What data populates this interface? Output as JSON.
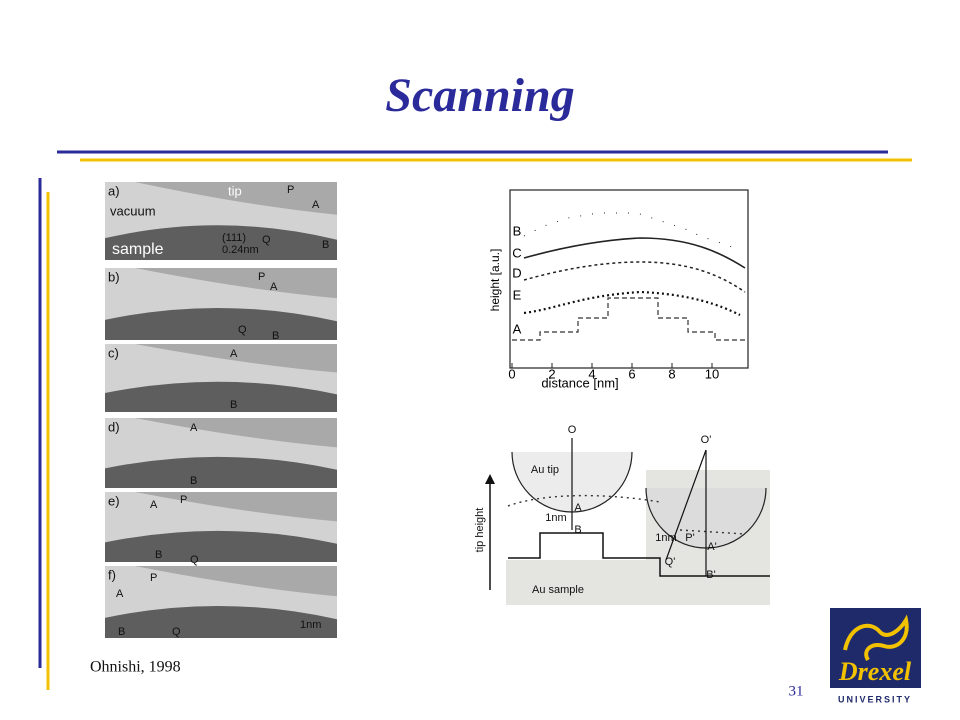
{
  "header": {
    "title": "Scanning"
  },
  "figure_left": {
    "panels": [
      {
        "label": "a)",
        "texts": [
          "tip",
          "vacuum",
          "sample",
          "P",
          "A",
          "Q",
          "B",
          "(111)",
          "0.24nm"
        ]
      },
      {
        "label": "b)",
        "texts": [
          "P",
          "A",
          "Q",
          "B"
        ]
      },
      {
        "label": "c)",
        "texts": [
          "A",
          "B"
        ]
      },
      {
        "label": "d)",
        "texts": [
          "A",
          "B"
        ]
      },
      {
        "label": "e)",
        "texts": [
          "A",
          "P",
          "B",
          "Q"
        ]
      },
      {
        "label": "f)",
        "texts": [
          "P",
          "A",
          "B",
          "Q",
          "1nm"
        ]
      }
    ]
  },
  "plot": {
    "y_label": "height [a.u.]",
    "x_label": "distance [nm]",
    "x_tick_labels": [
      "0",
      "2",
      "4",
      "6",
      "8",
      "10"
    ],
    "curve_labels": [
      "B",
      "C",
      "D",
      "E",
      "A"
    ]
  },
  "diagram": {
    "labels": [
      "O",
      "Au tip",
      "1nm",
      "A",
      "B",
      "Au sample",
      "tip height",
      "O'",
      "1nm",
      "P'",
      "A'",
      "Q'",
      "B'"
    ]
  },
  "footer": {
    "citation": "Ohnishi, 1998",
    "page_number": "31",
    "logo": {
      "name": "Drexel",
      "subtitle": "UNIVERSITY"
    }
  }
}
